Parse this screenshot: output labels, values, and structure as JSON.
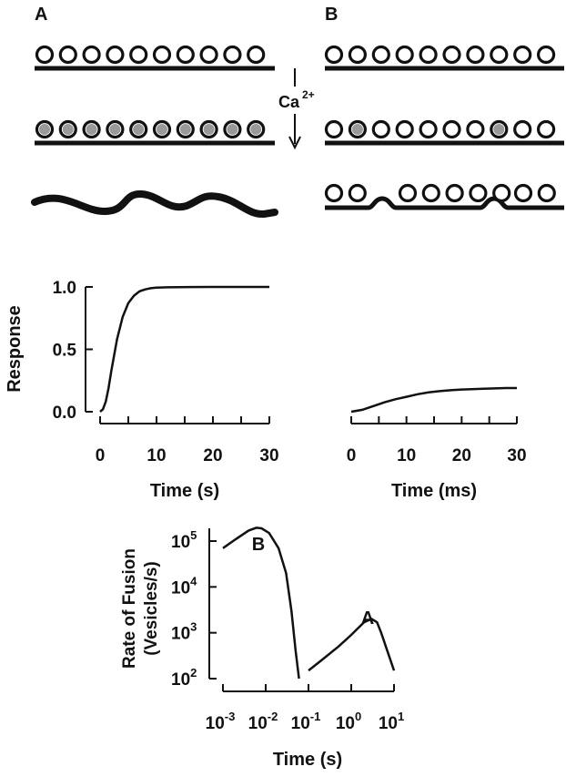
{
  "panels": {
    "a": "A",
    "b": "B"
  },
  "stimulus": {
    "ion": "Ca",
    "charge": "2+"
  },
  "vesicle_rows": [
    {
      "row": "top",
      "panel_a_count": 10,
      "panel_b_count": 10,
      "panel_a_state": "empty",
      "panel_b_state": "empty"
    },
    {
      "row": "middle",
      "panel_a_count": 10,
      "panel_b_count": 10,
      "panel_a_state": "all_filled_gray",
      "panel_b_filled_indices": [
        1,
        7
      ]
    },
    {
      "row": "bottom",
      "panel_a_state": "membrane_merged_wavy",
      "panel_b_groups": [
        2,
        5,
        2
      ]
    }
  ],
  "colors": {
    "ink": "#111111",
    "vesicle_fill": "#999999",
    "background": "#ffffff"
  },
  "chart_data": [
    {
      "type": "line",
      "title": "",
      "xlabel": "Time (s)",
      "ylabel": "Response",
      "xlim": [
        0,
        30
      ],
      "ylim": [
        0,
        1
      ],
      "xticks": [
        0,
        10,
        20,
        30
      ],
      "yticks": [
        0.0,
        0.5,
        1.0
      ],
      "ytick_labels": [
        "0.0",
        "0.5",
        "1.0"
      ],
      "series": [
        {
          "x": [
            0,
            0.5,
            1,
            1.5,
            2,
            3,
            4,
            5,
            6,
            7,
            8,
            9,
            10,
            12,
            14,
            16,
            20,
            25,
            30
          ],
          "y": [
            0.0,
            0.02,
            0.08,
            0.19,
            0.33,
            0.58,
            0.76,
            0.87,
            0.93,
            0.965,
            0.98,
            0.99,
            0.994,
            0.997,
            0.998,
            0.999,
            1.0,
            1.0,
            1.0
          ]
        }
      ]
    },
    {
      "type": "line",
      "title": "",
      "xlabel": "Time (ms)",
      "ylabel": "",
      "xlim": [
        0,
        30
      ],
      "ylim": [
        0,
        1
      ],
      "xticks": [
        0,
        10,
        20,
        30
      ],
      "yticks": [],
      "series": [
        {
          "x": [
            0,
            2,
            4,
            6,
            8,
            10,
            12,
            14,
            16,
            18,
            20,
            24,
            28,
            30
          ],
          "y": [
            0.0,
            0.015,
            0.045,
            0.075,
            0.1,
            0.12,
            0.14,
            0.155,
            0.165,
            0.172,
            0.178,
            0.185,
            0.19,
            0.19
          ]
        }
      ]
    },
    {
      "type": "line",
      "title": "",
      "xlabel": "Time (s)",
      "ylabel": [
        "Rate of Fusion",
        "(Vesicles/s)"
      ],
      "xscale": "log",
      "yscale": "log",
      "xlim": [
        0.001,
        10
      ],
      "ylim": [
        100,
        300000
      ],
      "xticks": [
        {
          "base": "10",
          "exp": "-3"
        },
        {
          "base": "10",
          "exp": "-2"
        },
        {
          "base": "10",
          "exp": "-1"
        },
        {
          "base": "10",
          "exp": "0"
        },
        {
          "base": "10",
          "exp": "1"
        }
      ],
      "yticks": [
        {
          "base": "10",
          "exp": "2"
        },
        {
          "base": "10",
          "exp": "3"
        },
        {
          "base": "10",
          "exp": "4"
        },
        {
          "base": "10",
          "exp": "5"
        }
      ],
      "series": [
        {
          "name": "B",
          "x": [
            0.001,
            0.002,
            0.004,
            0.006,
            0.008,
            0.012,
            0.02,
            0.03,
            0.04,
            0.05,
            0.06
          ],
          "y": [
            70000,
            110000,
            170000,
            195000,
            190000,
            150000,
            70000,
            20000,
            3000,
            400,
            100
          ]
        },
        {
          "name": "A",
          "x": [
            0.1,
            0.2,
            0.5,
            1,
            2,
            3,
            4,
            5,
            7,
            10
          ],
          "y": [
            150,
            250,
            500,
            900,
            1700,
            2000,
            1700,
            1000,
            400,
            150
          ]
        }
      ]
    }
  ]
}
